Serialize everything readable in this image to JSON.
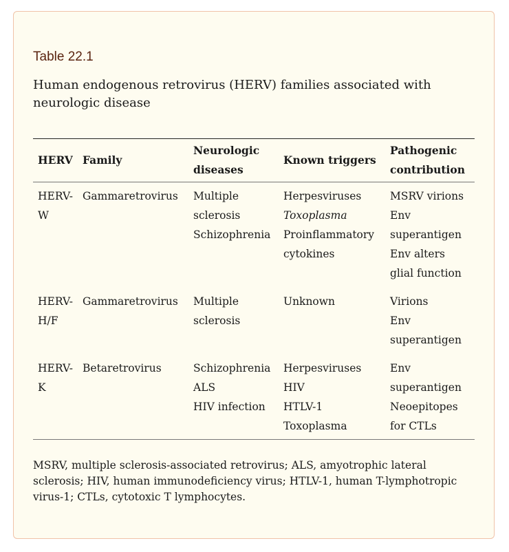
{
  "table_label": "Table 22.1",
  "caption": "Human endogenous retrovirus (HERV) families associated with neurologic disease",
  "headers": [
    "HERV",
    "Family",
    "Neurologic diseases",
    "Known triggers",
    "Pathogenic contribution"
  ],
  "rows": [
    {
      "herv": "HERV-W",
      "family": "Gammaretrovirus",
      "diseases": [
        "Multiple sclerosis",
        "Schizophrenia"
      ],
      "triggers": [
        {
          "t": "Herpesviruses"
        },
        {
          "t": "Toxoplasma",
          "italic": true
        },
        {
          "t": "Proinflammatory cytokines"
        }
      ],
      "contribution": [
        "MSRV virions",
        "Env superantigen",
        "Env alters glial function"
      ]
    },
    {
      "herv": "HERV-H/F",
      "family": "Gammaretrovirus",
      "diseases": [
        "Multiple sclerosis"
      ],
      "triggers": [
        {
          "t": "Unknown"
        }
      ],
      "contribution": [
        "Virions",
        "Env superantigen"
      ]
    },
    {
      "herv": "HERV-K",
      "family": "Betaretrovirus",
      "diseases": [
        "Schizophrenia",
        "ALS",
        "HIV infection"
      ],
      "triggers": [
        {
          "t": "Herpesviruses"
        },
        {
          "t": "HIV"
        },
        {
          "t": "HTLV-1"
        },
        {
          "t": "Toxoplasma"
        }
      ],
      "contribution": [
        "Env superantigen",
        "Neoepitopes for CTLs"
      ]
    }
  ],
  "footnote": "MSRV, multiple sclerosis-associated retrovirus; ALS, amyotrophic lateral sclerosis; HIV, human immunodeficiency virus; HTLV-1, human T-lymphotropic virus-1; CTLs, cytotoxic T lymphocytes.",
  "colors": {
    "card_bg": "#fefcf0",
    "card_border": "#f0c2a8",
    "label": "#5a2410"
  }
}
